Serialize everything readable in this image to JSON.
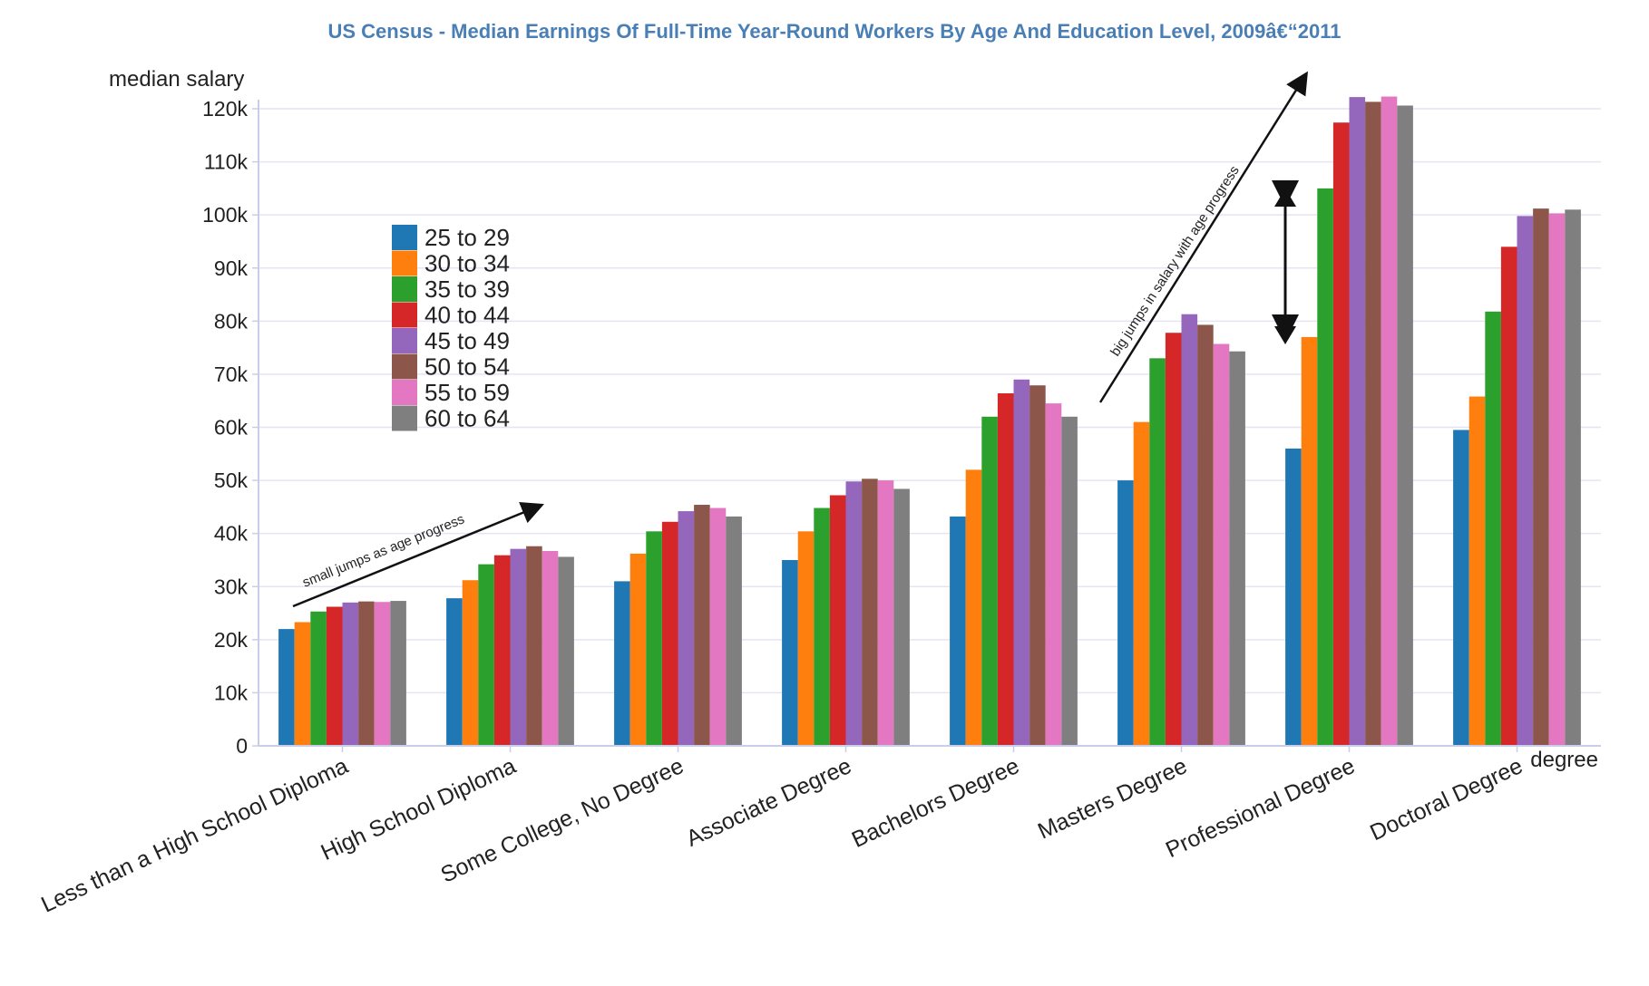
{
  "chart_data": {
    "type": "bar",
    "title": "US Census - Median Earnings Of Full-Time Year-Round Workers By Age And Education Level, 2009â€“2011",
    "xlabel": "degree",
    "ylabel": "median salary",
    "ylim": [
      0,
      120000
    ],
    "yticks": [
      {
        "value": 0,
        "label": "0"
      },
      {
        "value": 10000,
        "label": "10k"
      },
      {
        "value": 20000,
        "label": "20k"
      },
      {
        "value": 30000,
        "label": "30k"
      },
      {
        "value": 40000,
        "label": "40k"
      },
      {
        "value": 50000,
        "label": "50k"
      },
      {
        "value": 60000,
        "label": "60k"
      },
      {
        "value": 70000,
        "label": "70k"
      },
      {
        "value": 80000,
        "label": "80k"
      },
      {
        "value": 90000,
        "label": "90k"
      },
      {
        "value": 100000,
        "label": "100k"
      },
      {
        "value": 110000,
        "label": "110k"
      },
      {
        "value": 120000,
        "label": "120k"
      }
    ],
    "grid": true,
    "legend_position": "top-left",
    "categories": [
      "Less than a High School Diploma",
      "High School Diploma",
      "Some College, No Degree",
      "Associate Degree",
      "Bachelors Degree",
      "Masters Degree",
      "Professional Degree",
      "Doctoral Degree"
    ],
    "series": [
      {
        "name": "25 to 29",
        "color": "#1f77b4",
        "values": [
          22000,
          27800,
          31000,
          35000,
          43200,
          50000,
          56000,
          59500
        ]
      },
      {
        "name": "30 to 34",
        "color": "#ff7f0e",
        "values": [
          23300,
          31200,
          36200,
          40400,
          52000,
          61000,
          77000,
          65800
        ]
      },
      {
        "name": "35 to 39",
        "color": "#2ca02c",
        "values": [
          25300,
          34200,
          40400,
          44800,
          62000,
          73000,
          105000,
          81800
        ]
      },
      {
        "name": "40 to 44",
        "color": "#d62728",
        "values": [
          26200,
          35900,
          42200,
          47200,
          66400,
          77800,
          117400,
          94000
        ]
      },
      {
        "name": "45 to 49",
        "color": "#9467bd",
        "values": [
          27000,
          37100,
          44200,
          49800,
          69000,
          81300,
          122200,
          99800
        ]
      },
      {
        "name": "50 to 54",
        "color": "#8c564b",
        "values": [
          27200,
          37600,
          45400,
          50300,
          67900,
          79300,
          121300,
          101200
        ]
      },
      {
        "name": "55 to 59",
        "color": "#e377c2",
        "values": [
          27100,
          36700,
          44800,
          50000,
          64500,
          75700,
          122300,
          100300
        ]
      },
      {
        "name": "60 to 64",
        "color": "#7f7f7f",
        "values": [
          27300,
          35600,
          43200,
          48400,
          62000,
          74300,
          120600,
          101000
        ]
      }
    ],
    "annotations": [
      {
        "text": "small jumps as age progress"
      },
      {
        "text": "big jumps in salary with age progress"
      }
    ]
  }
}
